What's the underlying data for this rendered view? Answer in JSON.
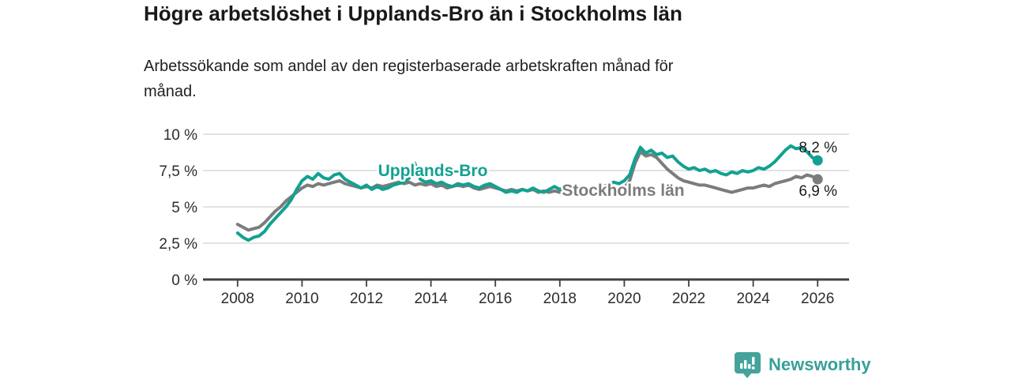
{
  "header": {
    "title": "Högre arbetslöshet i Upplands-Bro än i Stockholms län",
    "subtitle_line1": "Arbetssökande som andel av den registerbaserade arbetskraften månad för",
    "subtitle_line2": "månad."
  },
  "footer": {
    "brand": "Newsworthy",
    "logo_icon": "bar-chart-speech-bubble-icon"
  },
  "colors": {
    "accent_teal": "#12a191",
    "series_gray": "#7c7c7c",
    "logo_teal": "#44a39b",
    "grid": "#d8d8d8",
    "axis": "#404040",
    "axis_text": "#2d2d2d",
    "value_label_text": "#1c1c1c"
  },
  "chart_data": {
    "type": "line",
    "title": "Högre arbetslöshet i Upplands-Bro än i Stockholms län",
    "subtitle": "Arbetssökande som andel av den registerbaserade arbetskraften månad för månad.",
    "xlabel": "",
    "ylabel": "",
    "grid": "horizontal",
    "legend_position": "inline-labels",
    "x_axis": {
      "ticks": [
        2008,
        2010,
        2012,
        2014,
        2016,
        2018,
        2020,
        2022,
        2024,
        2026
      ],
      "range": [
        2006.9,
        2027.0
      ]
    },
    "y_axis": {
      "tick_labels": [
        "0 %",
        "2,5 %",
        "5 %",
        "7,5 %",
        "10 %"
      ],
      "tick_values": [
        0,
        2.5,
        5,
        7.5,
        10
      ],
      "range": [
        0,
        10
      ],
      "unit": "%"
    },
    "x_start": 2008.0,
    "x_step_years": 0.1666667,
    "series": [
      {
        "name": "Stockholms län",
        "color": "#7c7c7c",
        "end_label": "6,9 %",
        "end_value": 6.9,
        "values": [
          3.8,
          3.6,
          3.4,
          3.5,
          3.6,
          3.9,
          4.3,
          4.7,
          5.0,
          5.4,
          5.7,
          6.0,
          6.3,
          6.5,
          6.4,
          6.6,
          6.5,
          6.6,
          6.7,
          6.8,
          6.6,
          6.5,
          6.4,
          6.3,
          6.4,
          6.3,
          6.5,
          6.4,
          6.5,
          6.6,
          6.7,
          6.6,
          6.7,
          6.5,
          6.6,
          6.5,
          6.6,
          6.4,
          6.5,
          6.3,
          6.4,
          6.5,
          6.4,
          6.5,
          6.3,
          6.2,
          6.3,
          6.4,
          6.3,
          6.2,
          6.1,
          6.2,
          6.1,
          6.2,
          6.1,
          6.2,
          6.0,
          6.1,
          6.0,
          6.1,
          6.0,
          6.1,
          5.9,
          6.0,
          5.9,
          6.0,
          5.9,
          6.0,
          6.1,
          6.0,
          6.2,
          6.1,
          6.3,
          6.8,
          8.0,
          8.8,
          8.5,
          8.6,
          8.4,
          8.0,
          7.6,
          7.3,
          7.0,
          6.8,
          6.7,
          6.6,
          6.5,
          6.5,
          6.4,
          6.3,
          6.2,
          6.1,
          6.0,
          6.1,
          6.2,
          6.3,
          6.3,
          6.4,
          6.5,
          6.4,
          6.6,
          6.7,
          6.8,
          6.9,
          7.1,
          7.0,
          7.2,
          7.1,
          6.9
        ]
      },
      {
        "name": "Upplands-Bro",
        "color": "#12a191",
        "end_label": "8,2 %",
        "end_value": 8.2,
        "values": [
          3.2,
          2.9,
          2.7,
          2.9,
          3.0,
          3.3,
          3.8,
          4.2,
          4.6,
          5.0,
          5.5,
          6.2,
          6.8,
          7.1,
          6.9,
          7.3,
          7.0,
          6.9,
          7.2,
          7.3,
          6.9,
          6.7,
          6.5,
          6.3,
          6.5,
          6.2,
          6.4,
          6.2,
          6.3,
          6.5,
          6.6,
          6.7,
          7.0,
          8.0,
          6.9,
          6.7,
          6.8,
          6.6,
          6.7,
          6.5,
          6.4,
          6.6,
          6.5,
          6.6,
          6.4,
          6.3,
          6.5,
          6.6,
          6.4,
          6.2,
          6.0,
          6.1,
          6.0,
          6.2,
          6.1,
          6.3,
          6.1,
          6.0,
          6.2,
          6.4,
          6.2,
          6.4,
          6.2,
          6.0,
          6.3,
          6.1,
          6.0,
          6.2,
          6.4,
          6.5,
          6.7,
          6.6,
          6.8,
          7.2,
          8.3,
          9.1,
          8.7,
          8.9,
          8.6,
          8.7,
          8.4,
          8.5,
          8.1,
          7.8,
          7.6,
          7.7,
          7.5,
          7.6,
          7.4,
          7.5,
          7.3,
          7.2,
          7.4,
          7.3,
          7.5,
          7.4,
          7.5,
          7.7,
          7.6,
          7.8,
          8.1,
          8.5,
          8.9,
          9.2,
          9.0,
          9.1,
          8.8,
          8.4,
          8.2
        ]
      }
    ]
  }
}
